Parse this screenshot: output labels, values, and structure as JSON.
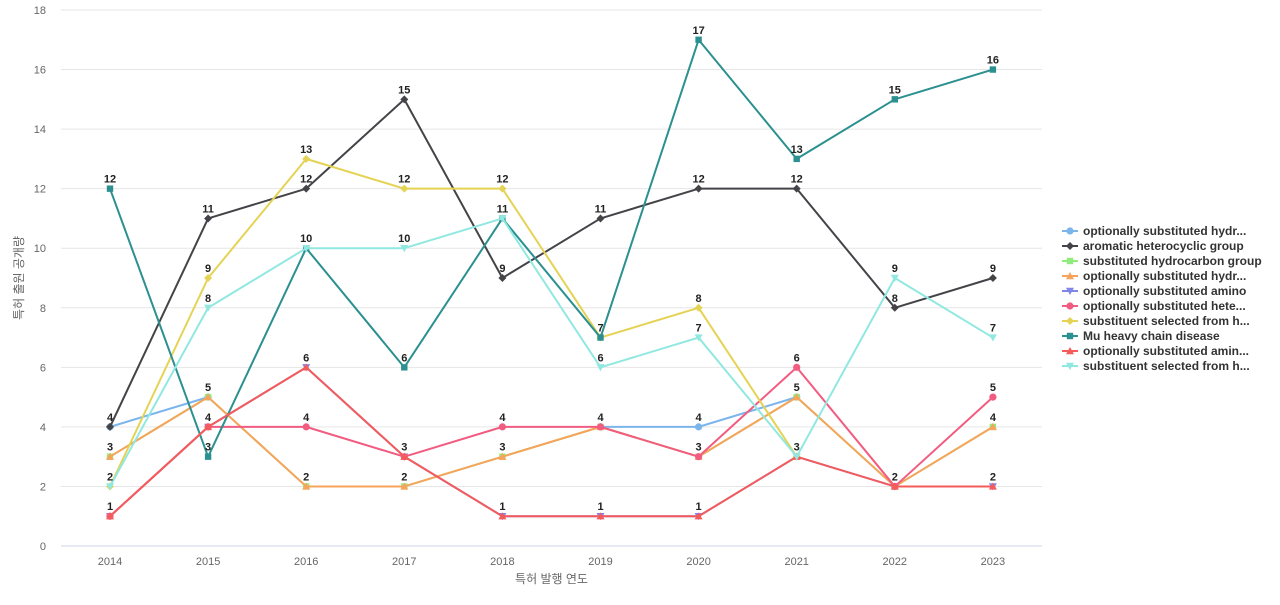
{
  "chart_data": {
    "type": "line",
    "title": "",
    "xlabel": "특허 발행 연도",
    "ylabel": "특허 출원 공개량",
    "categories": [
      "2014",
      "2015",
      "2016",
      "2017",
      "2018",
      "2019",
      "2020",
      "2021",
      "2022",
      "2023"
    ],
    "ylim": [
      0,
      18
    ],
    "yticks": [
      0,
      2,
      4,
      6,
      8,
      10,
      12,
      14,
      16,
      18
    ],
    "grid": true,
    "legend_position": "right",
    "series": [
      {
        "name": "optionally substituted hydr...",
        "color": "#7cb5ec",
        "marker": "circle",
        "values": [
          4,
          5,
          null,
          null,
          null,
          4,
          4,
          5,
          null,
          null
        ]
      },
      {
        "name": "aromatic heterocyclic group",
        "color": "#434348",
        "marker": "diamond",
        "values": [
          4,
          11,
          12,
          15,
          9,
          11,
          12,
          12,
          8,
          9
        ]
      },
      {
        "name": "substituted hydrocarbon group",
        "color": "#90ed7d",
        "marker": "square",
        "values": [
          3,
          5,
          2,
          2,
          3,
          4,
          3,
          5,
          2,
          4
        ]
      },
      {
        "name": "optionally substituted hydr...",
        "color": "#f7a35c",
        "marker": "triangle",
        "values": [
          3,
          5,
          2,
          2,
          3,
          4,
          3,
          5,
          2,
          4
        ]
      },
      {
        "name": "optionally substituted amino",
        "color": "#8085e9",
        "marker": "triangle-down",
        "values": [
          1,
          4,
          6,
          3,
          1,
          1,
          1,
          3,
          2,
          2
        ]
      },
      {
        "name": "optionally substituted hete...",
        "color": "#f15c80",
        "marker": "circle",
        "values": [
          1,
          4,
          4,
          3,
          4,
          4,
          3,
          6,
          2,
          5
        ]
      },
      {
        "name": "substituent selected from h...",
        "color": "#e4d354",
        "marker": "diamond",
        "values": [
          2,
          9,
          13,
          12,
          12,
          7,
          8,
          3,
          null,
          null
        ]
      },
      {
        "name": "Mu heavy chain disease",
        "color": "#2b908f",
        "marker": "square",
        "values": [
          12,
          3,
          10,
          6,
          11,
          7,
          17,
          13,
          15,
          16
        ]
      },
      {
        "name": "optionally substituted amin...",
        "color": "#f45b5b",
        "marker": "triangle",
        "values": [
          1,
          4,
          6,
          3,
          1,
          1,
          1,
          3,
          2,
          2
        ]
      },
      {
        "name": "substituent selected from h...",
        "color": "#91e8e1",
        "marker": "triangle-down",
        "values": [
          2,
          8,
          10,
          10,
          11,
          6,
          7,
          3,
          9,
          7
        ]
      }
    ],
    "data_labels": [
      {
        "x": "2014",
        "y": 12,
        "text": "12"
      },
      {
        "x": "2014",
        "y": 4,
        "text": "4"
      },
      {
        "x": "2014",
        "y": 3,
        "text": "3"
      },
      {
        "x": "2014",
        "y": 2,
        "text": "2"
      },
      {
        "x": "2014",
        "y": 1,
        "text": "1"
      },
      {
        "x": "2015",
        "y": 11,
        "text": "11"
      },
      {
        "x": "2015",
        "y": 9,
        "text": "9"
      },
      {
        "x": "2015",
        "y": 8,
        "text": "8"
      },
      {
        "x": "2015",
        "y": 5,
        "text": "5"
      },
      {
        "x": "2015",
        "y": 4,
        "text": "4"
      },
      {
        "x": "2015",
        "y": 3,
        "text": "3"
      },
      {
        "x": "2016",
        "y": 13,
        "text": "13"
      },
      {
        "x": "2016",
        "y": 12,
        "text": "12"
      },
      {
        "x": "2016",
        "y": 10,
        "text": "10"
      },
      {
        "x": "2016",
        "y": 6,
        "text": "6"
      },
      {
        "x": "2016",
        "y": 4,
        "text": "4"
      },
      {
        "x": "2016",
        "y": 2,
        "text": "2"
      },
      {
        "x": "2017",
        "y": 15,
        "text": "15"
      },
      {
        "x": "2017",
        "y": 12,
        "text": "12"
      },
      {
        "x": "2017",
        "y": 10,
        "text": "10"
      },
      {
        "x": "2017",
        "y": 6,
        "text": "6"
      },
      {
        "x": "2017",
        "y": 3,
        "text": "3"
      },
      {
        "x": "2017",
        "y": 2,
        "text": "2"
      },
      {
        "x": "2018",
        "y": 12,
        "text": "12"
      },
      {
        "x": "2018",
        "y": 11,
        "text": "11"
      },
      {
        "x": "2018",
        "y": 9,
        "text": "9"
      },
      {
        "x": "2018",
        "y": 4,
        "text": "4"
      },
      {
        "x": "2018",
        "y": 3,
        "text": "3"
      },
      {
        "x": "2018",
        "y": 1,
        "text": "1"
      },
      {
        "x": "2019",
        "y": 11,
        "text": "11"
      },
      {
        "x": "2019",
        "y": 7,
        "text": "7"
      },
      {
        "x": "2019",
        "y": 6,
        "text": "6"
      },
      {
        "x": "2019",
        "y": 4,
        "text": "4"
      },
      {
        "x": "2019",
        "y": 1,
        "text": "1"
      },
      {
        "x": "2020",
        "y": 17,
        "text": "17"
      },
      {
        "x": "2020",
        "y": 12,
        "text": "12"
      },
      {
        "x": "2020",
        "y": 8,
        "text": "8"
      },
      {
        "x": "2020",
        "y": 7,
        "text": "7"
      },
      {
        "x": "2020",
        "y": 4,
        "text": "4"
      },
      {
        "x": "2020",
        "y": 3,
        "text": "3"
      },
      {
        "x": "2020",
        "y": 1,
        "text": "1"
      },
      {
        "x": "2021",
        "y": 13,
        "text": "13"
      },
      {
        "x": "2021",
        "y": 12,
        "text": "12"
      },
      {
        "x": "2021",
        "y": 6,
        "text": "6"
      },
      {
        "x": "2021",
        "y": 5,
        "text": "5"
      },
      {
        "x": "2021",
        "y": 3,
        "text": "3"
      },
      {
        "x": "2022",
        "y": 15,
        "text": "15"
      },
      {
        "x": "2022",
        "y": 9,
        "text": "9"
      },
      {
        "x": "2022",
        "y": 8,
        "text": "8"
      },
      {
        "x": "2022",
        "y": 2,
        "text": "2"
      },
      {
        "x": "2023",
        "y": 16,
        "text": "16"
      },
      {
        "x": "2023",
        "y": 9,
        "text": "9"
      },
      {
        "x": "2023",
        "y": 7,
        "text": "7"
      },
      {
        "x": "2023",
        "y": 5,
        "text": "5"
      },
      {
        "x": "2023",
        "y": 4,
        "text": "4"
      },
      {
        "x": "2023",
        "y": 2,
        "text": "2"
      }
    ]
  }
}
